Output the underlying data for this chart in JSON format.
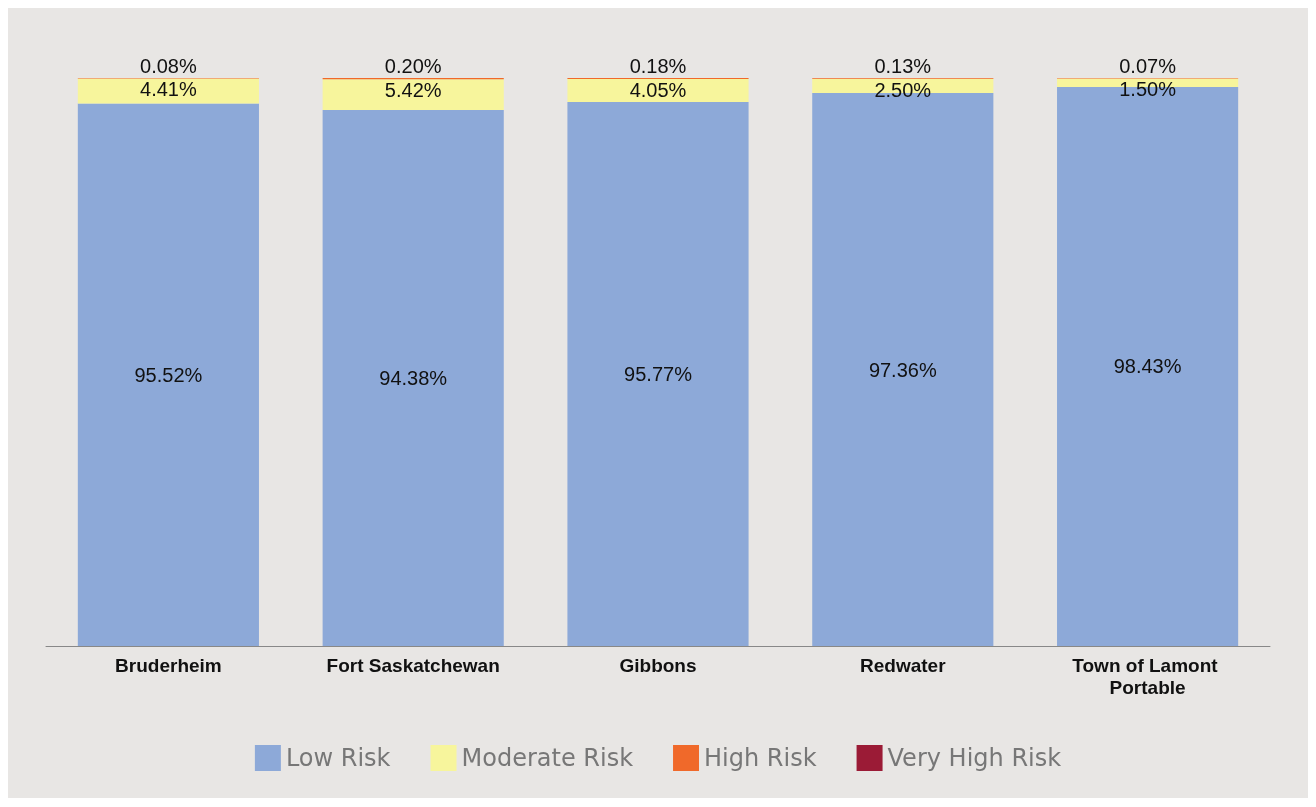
{
  "chart_data": {
    "type": "bar",
    "stacked": true,
    "categories": [
      "Bruderheim",
      "Fort Saskatchewan",
      "Gibbons",
      "Redwater",
      "Town of Lamont Portable"
    ],
    "series": [
      {
        "name": "Low Risk",
        "color": "#8da9d8",
        "values": [
          95.52,
          94.38,
          95.77,
          97.36,
          98.43
        ],
        "value_labels": [
          "95.52%",
          "94.38%",
          "95.77%",
          "97.36%",
          "98.43%"
        ]
      },
      {
        "name": "Moderate Risk",
        "color": "#f7f59c",
        "values": [
          4.41,
          5.42,
          4.05,
          2.5,
          1.5
        ],
        "value_labels": [
          "4.41%",
          "5.42%",
          "4.05%",
          "2.50%",
          "1.50%"
        ]
      },
      {
        "name": "High Risk",
        "color": "#f0692a",
        "values": [
          0.08,
          0.2,
          0.18,
          0.13,
          0.07
        ],
        "value_labels": [
          "0.08%",
          "0.20%",
          "0.18%",
          "0.13%",
          "0.07%"
        ]
      },
      {
        "name": "Very High Risk",
        "color": "#9b1b36",
        "values": [
          0,
          0,
          0,
          0,
          0
        ]
      }
    ],
    "grid": false,
    "legend": "bottom"
  }
}
